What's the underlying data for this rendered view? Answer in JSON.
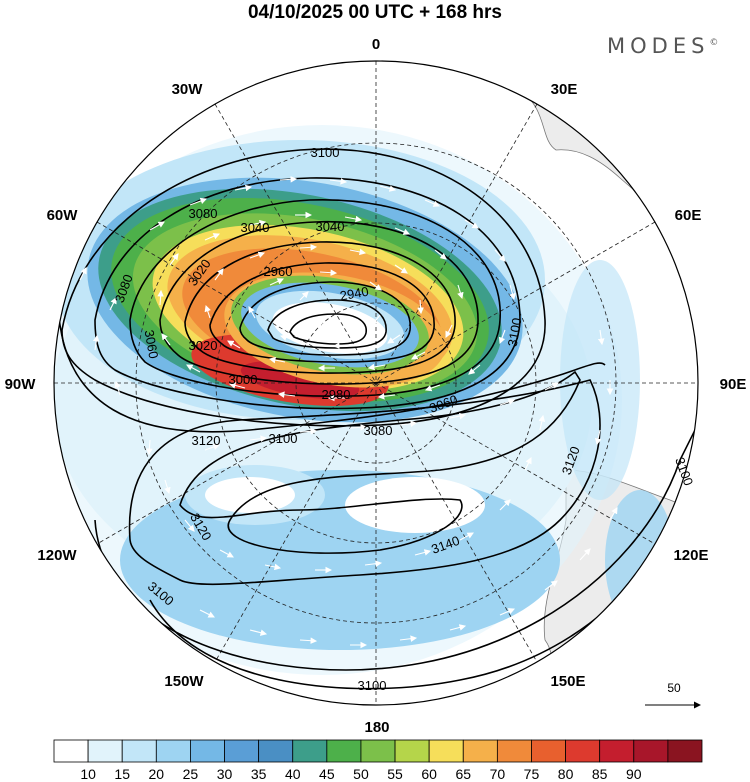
{
  "title": "04/10/2025  00 UTC  + 168 hrs",
  "brand": "MODES",
  "brand_mark": "©",
  "longitude_labels": {
    "lon_0": "0",
    "lon_30e": "30E",
    "lon_60e": "60E",
    "lon_90e": "90E",
    "lon_120e": "120E",
    "lon_150e": "150E",
    "lon_180": "180",
    "lon_150w": "150W",
    "lon_120w": "120W",
    "lon_90w": "90W",
    "lon_60w": "60W",
    "lon_30w": "30W"
  },
  "contour_labels": [
    "3100",
    "3080",
    "3040",
    "3040",
    "3080",
    "3020",
    "2960",
    "2940",
    "3060",
    "3020",
    "3000",
    "2980",
    "3060",
    "3080",
    "3100",
    "3120",
    "3100",
    "3120",
    "3140",
    "3120",
    "3100",
    "3100",
    "3100"
  ],
  "wind_reference": "50",
  "colorbar": {
    "colors": [
      "#ffffff",
      "#e1f3fb",
      "#c2e6f8",
      "#9ed4f2",
      "#74b8e6",
      "#5a9ed6",
      "#4a8fc4",
      "#3d9e8a",
      "#4db04a",
      "#7cc04a",
      "#b5d54a",
      "#f6de5a",
      "#f5b04a",
      "#f08a3a",
      "#e8602e",
      "#dd3a2e",
      "#c41e2e",
      "#a8162a",
      "#8a1420"
    ],
    "labels": [
      "10",
      "15",
      "20",
      "25",
      "30",
      "35",
      "40",
      "45",
      "50",
      "55",
      "60",
      "65",
      "70",
      "75",
      "80",
      "85",
      "90"
    ]
  }
}
